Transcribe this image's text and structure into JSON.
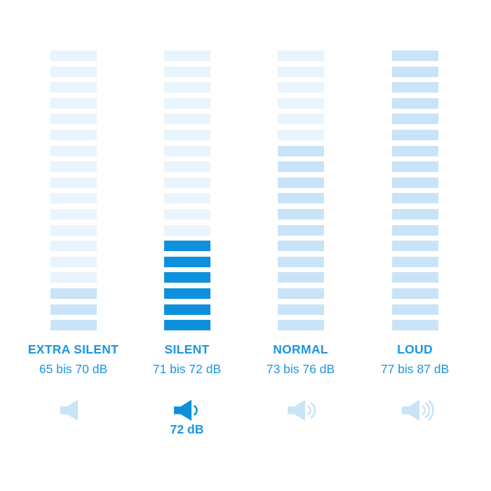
{
  "page": {
    "background": "#ffffff"
  },
  "colors": {
    "accent_strong": "#0e90dd",
    "bar_light": "#e9f4fc",
    "bar_medium": "#c9e4f7",
    "text_blue": "#1d95e2"
  },
  "columns": [
    {
      "label": "EXTRA SILENT",
      "range": "65 bis 70 dB",
      "segments_total": 18,
      "segments_filled": 3,
      "fill_style": "medium",
      "icon": "speaker-mute-icon",
      "icon_waves": 0,
      "icon_active": false,
      "value_label": null
    },
    {
      "label": "SILENT",
      "range": "71 bis 72 dB",
      "segments_total": 18,
      "segments_filled": 6,
      "fill_style": "strong",
      "icon": "speaker-low-icon",
      "icon_waves": 1,
      "icon_active": true,
      "value_label": "72 dB"
    },
    {
      "label": "NORMAL",
      "range": "73 bis 76 dB",
      "segments_total": 18,
      "segments_filled": 12,
      "fill_style": "medium",
      "icon": "speaker-medium-icon",
      "icon_waves": 2,
      "icon_active": false,
      "value_label": null
    },
    {
      "label": "LOUD",
      "range": "77 bis 87 dB",
      "segments_total": 18,
      "segments_filled": 18,
      "fill_style": "medium",
      "icon": "speaker-loud-icon",
      "icon_waves": 3,
      "icon_active": false,
      "value_label": null
    }
  ],
  "chart_data": {
    "type": "bar",
    "subtype": "segmented-volume-meter",
    "title": "",
    "categories": [
      "EXTRA SILENT",
      "SILENT",
      "NORMAL",
      "LOUD"
    ],
    "range_labels": [
      "65 bis 70 dB",
      "71 bis 72 dB",
      "73 bis 76 dB",
      "77 bis 87 dB"
    ],
    "db_ranges": [
      [
        65,
        70
      ],
      [
        71,
        72
      ],
      [
        73,
        76
      ],
      [
        77,
        87
      ]
    ],
    "segments_per_column": 18,
    "series": [
      {
        "name": "filled_segments",
        "values": [
          3,
          6,
          12,
          18
        ]
      }
    ],
    "highlighted_column": "SILENT",
    "highlighted_value": "72 dB",
    "legend": "none",
    "grid": false,
    "orientation": "vertical"
  }
}
